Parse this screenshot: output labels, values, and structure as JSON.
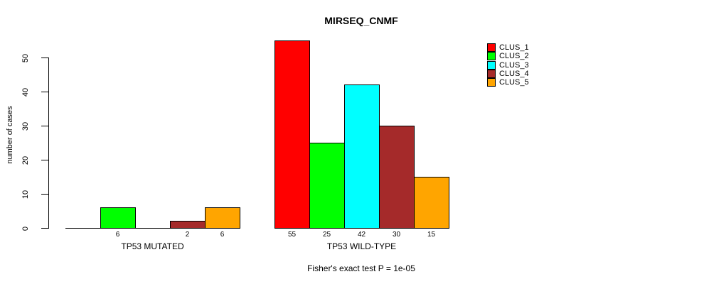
{
  "chart_data": {
    "type": "bar",
    "title": "MIRSEQ_CNMF",
    "ylabel": "number of cases",
    "footnote": "Fisher's exact test P = 1e-05",
    "yticks": [
      0,
      10,
      20,
      30,
      40,
      50
    ],
    "ylim": [
      0,
      50
    ],
    "grid": false,
    "legend_position": "topright",
    "series": [
      {
        "name": "CLUS_1",
        "color": "#FF0000"
      },
      {
        "name": "CLUS_2",
        "color": "#00FF00"
      },
      {
        "name": "CLUS_3",
        "color": "#00FFFF"
      },
      {
        "name": "CLUS_4",
        "color": "#A52A2A"
      },
      {
        "name": "CLUS_5",
        "color": "#FFA500"
      }
    ],
    "groups": [
      {
        "label": "TP53 MUTATED",
        "values": [
          0,
          6,
          0,
          2,
          6
        ],
        "value_labels": [
          "",
          "6",
          "",
          "2",
          "6"
        ]
      },
      {
        "label": "TP53 WILD-TYPE",
        "values": [
          55,
          25,
          42,
          30,
          15
        ],
        "value_labels": [
          "55",
          "25",
          "42",
          "30",
          "15"
        ]
      }
    ]
  }
}
